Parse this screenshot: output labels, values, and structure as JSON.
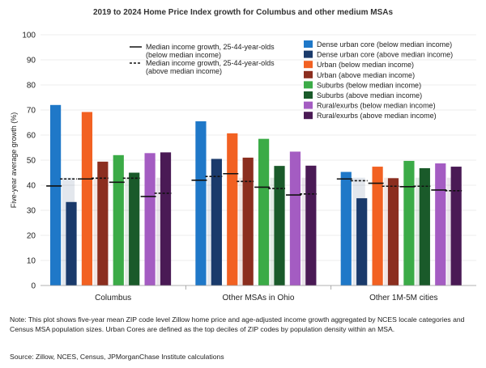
{
  "title": "2019 to 2024 Home Price Index growth for Columbus and other medium MSAs",
  "note": "Note: This plot shows five-year mean ZIP code level Zillow home price and age-adjusted income growth aggregated by NCES locale categories and Census MSA population sizes. Urban Cores are defined as the top deciles of ZIP codes by population density within an MSA.",
  "source": "Source: Zillow, NCES, Census, JPMorganChase Institute calculations",
  "chart_data": {
    "type": "bar",
    "ylabel": "Five-year average growth (%)",
    "xlabel": "",
    "ylim": [
      0,
      100
    ],
    "yticks": [
      0,
      10,
      20,
      30,
      40,
      50,
      60,
      70,
      80,
      90,
      100
    ],
    "grid": true,
    "legend_position": "top-right",
    "categories": [
      "Columbus",
      "Other MSAs in Ohio",
      "Other 1M-5M cities"
    ],
    "series": [
      {
        "name": "Dense urban core (below median income)",
        "color": "#1f78c8",
        "values": [
          72,
          65.5,
          45.3
        ]
      },
      {
        "name": "Dense urban core (above median income)",
        "color": "#1a3a6b",
        "values": [
          33.3,
          50.5,
          34.8
        ]
      },
      {
        "name": "Urban (below median income)",
        "color": "#f26122",
        "values": [
          69.2,
          60.7,
          47.4
        ]
      },
      {
        "name": "Urban (above median income)",
        "color": "#8b2e1f",
        "values": [
          49.4,
          51,
          42.8
        ]
      },
      {
        "name": "Suburbs (below median income)",
        "color": "#3bab47",
        "values": [
          52,
          58.5,
          49.7
        ]
      },
      {
        "name": "Suburbs (above median income)",
        "color": "#1a5a2a",
        "values": [
          45,
          47.7,
          46.8
        ]
      },
      {
        "name": "Rural/exurbs (below median income)",
        "color": "#a45cc2",
        "values": [
          52.8,
          53.4,
          48.7
        ]
      },
      {
        "name": "Rural/exurbs (above median income)",
        "color": "#4a1a55",
        "values": [
          53.1,
          47.8,
          47.4
        ]
      }
    ],
    "income_lines": [
      {
        "name": "Median income growth, 25-44-year-olds (below median income)",
        "style": "solid",
        "values": [
          [
            39.7,
            42.5,
            41.2,
            35.5
          ],
          [
            42,
            44.6,
            39.2,
            36.1
          ],
          [
            42.5,
            40.8,
            39.4,
            38.1
          ]
        ]
      },
      {
        "name": "Median income growth, 25-44-year-olds (above median income)",
        "style": "dashed",
        "values": [
          [
            42.5,
            42.8,
            42.8,
            36.8
          ],
          [
            43.5,
            41.5,
            38.7,
            36.5
          ],
          [
            41.8,
            39.6,
            39.6,
            37.8
          ]
        ]
      }
    ]
  }
}
